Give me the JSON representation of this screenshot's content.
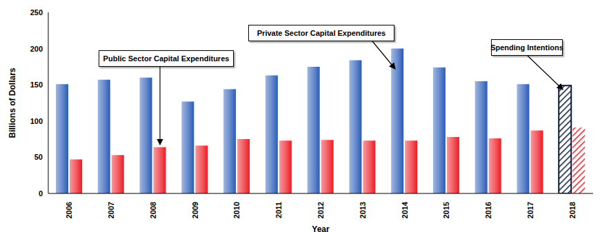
{
  "chart_data": {
    "type": "bar",
    "x_label": "Year",
    "y_label": "Billions of Dollars",
    "categories": [
      "2006",
      "2007",
      "2008",
      "2009",
      "2010",
      "2011",
      "2012",
      "2013",
      "2014",
      "2015",
      "2016",
      "2017",
      "2018"
    ],
    "series": [
      {
        "name": "Private Sector Capital Expenditures",
        "color": "#2a5cb8",
        "values": [
          151,
          157,
          160,
          127,
          144,
          163,
          175,
          184,
          200,
          174,
          155,
          151,
          149
        ]
      },
      {
        "name": "Public Sector Capital Expenditures",
        "color": "#ed1c24",
        "values": [
          47,
          53,
          64,
          66,
          75,
          73,
          74,
          73,
          73,
          78,
          76,
          87,
          91
        ]
      }
    ],
    "annotations": [
      "Public Sector Capital Expenditures",
      "Private Sector Capital Expenditures",
      "Spending Intentions"
    ],
    "ylim": [
      0,
      250
    ],
    "yticks": [
      0,
      50,
      100,
      150,
      200,
      250
    ],
    "grid": false
  }
}
